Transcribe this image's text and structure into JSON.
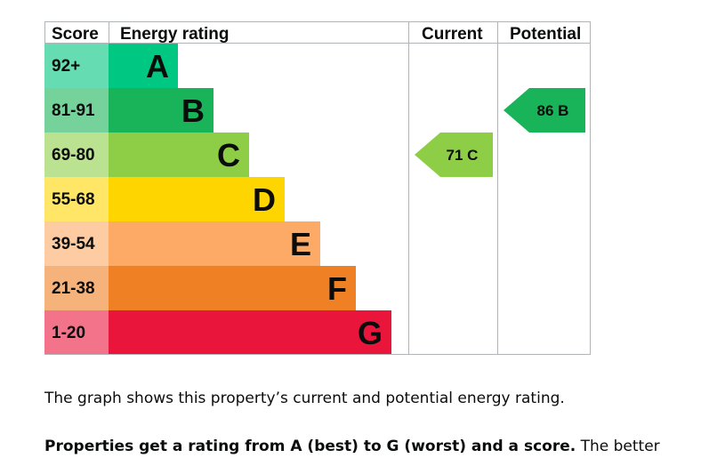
{
  "chart_data": {
    "type": "bar",
    "headers": {
      "score": "Score",
      "rating": "Energy rating",
      "current": "Current",
      "potential": "Potential"
    },
    "bands": [
      {
        "letter": "A",
        "score_range": "92+",
        "color": "#00c781",
        "score_bg": "#66dcb3"
      },
      {
        "letter": "B",
        "score_range": "81-91",
        "color": "#19b459",
        "score_bg": "#75d29b"
      },
      {
        "letter": "C",
        "score_range": "69-80",
        "color": "#8dce46",
        "score_bg": "#bbe290"
      },
      {
        "letter": "D",
        "score_range": "55-68",
        "color": "#ffd500",
        "score_bg": "#ffe666"
      },
      {
        "letter": "E",
        "score_range": "39-54",
        "color": "#fcaa65",
        "score_bg": "#fdcca3"
      },
      {
        "letter": "F",
        "score_range": "21-38",
        "color": "#ef8023",
        "score_bg": "#f5b37b"
      },
      {
        "letter": "G",
        "score_range": "1-20",
        "color": "#e9153b",
        "score_bg": "#f2738a"
      }
    ],
    "current": {
      "score": 71,
      "band": "C",
      "label": "71 C",
      "color": "#8dce46"
    },
    "potential": {
      "score": 86,
      "band": "B",
      "label": "86 B",
      "color": "#19b459"
    }
  },
  "text": {
    "paragraph1": "The graph shows this property’s current and potential energy rating.",
    "paragraph2_bold": "Properties get a rating from A (best) to G (worst) and a score.",
    "paragraph2_rest": " The better"
  }
}
